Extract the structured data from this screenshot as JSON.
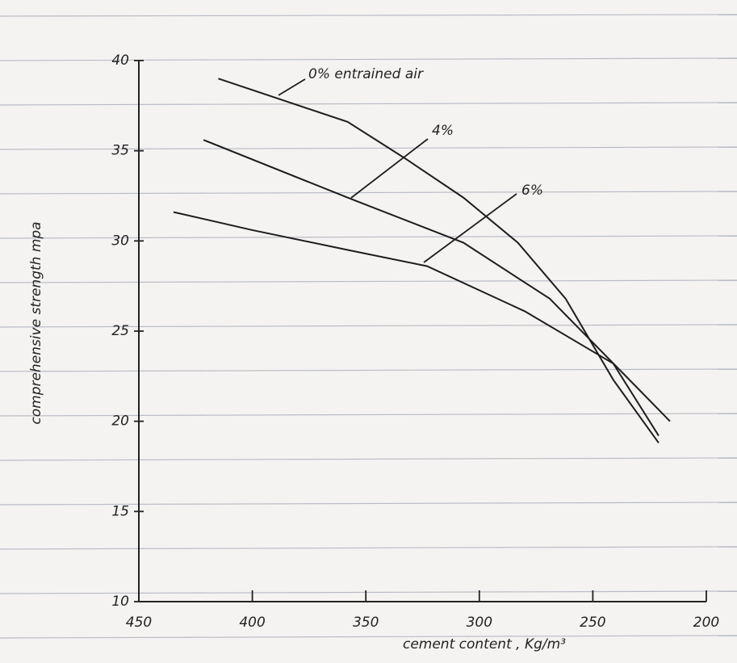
{
  "chart_data": {
    "type": "line",
    "x_label": "cement content , Kg/m³",
    "y_label": "comprehensive strength mpa",
    "xlim": [
      450,
      200
    ],
    "ylim": [
      10,
      40
    ],
    "xticks": [
      450,
      400,
      350,
      300,
      250,
      200
    ],
    "yticks": [
      10,
      15,
      20,
      25,
      30,
      35,
      40
    ],
    "series": [
      {
        "name": "0% entrained air",
        "color": "#1d1d1d",
        "x": [
          415,
          358,
          333,
          307,
          283,
          262,
          241,
          221
        ],
        "values": [
          39.0,
          36.6,
          34.6,
          32.4,
          29.9,
          26.8,
          22.3,
          18.8
        ]
      },
      {
        "name": "4%",
        "color": "#1d1d1d",
        "x": [
          421.5,
          358,
          307,
          269,
          237,
          216
        ],
        "values": [
          35.6,
          32.4,
          29.9,
          26.8,
          22.7,
          20.0
        ]
      },
      {
        "name": "6%",
        "color": "#1d1d1d",
        "x": [
          434.7,
          400,
          358,
          323,
          280,
          241,
          221
        ],
        "values": [
          31.6,
          30.6,
          29.5,
          28.6,
          26.1,
          23.2,
          19.2
        ]
      }
    ]
  }
}
